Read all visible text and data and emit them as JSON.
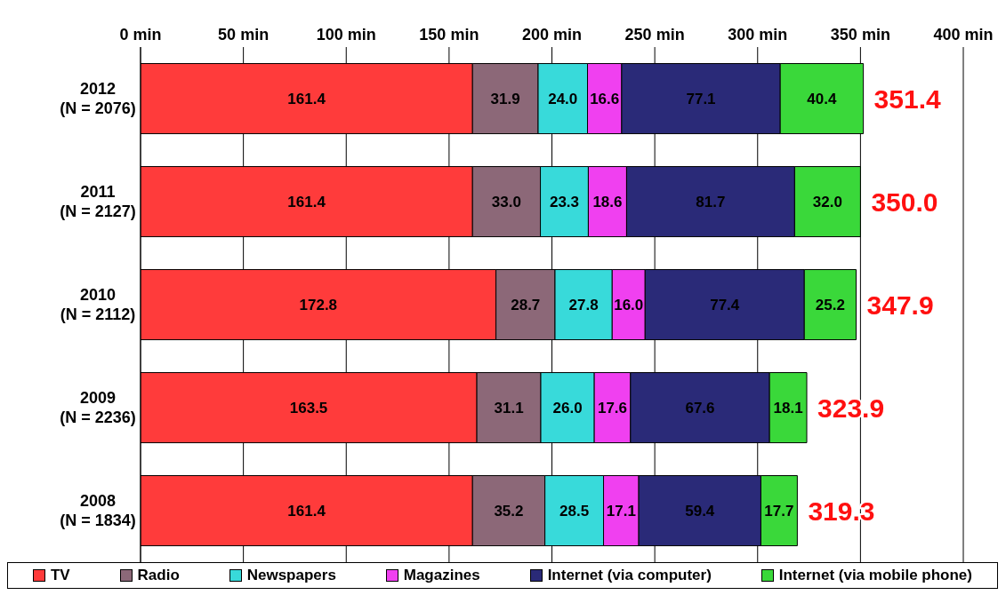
{
  "chart_data": {
    "type": "bar",
    "orientation": "horizontal",
    "stacked": true,
    "categories": [
      "2012\n(N = 2076)",
      "2011\n(N = 2127)",
      "2010\n(N = 2112)",
      "2009\n(N = 2236)",
      "2008\n(N = 1834)"
    ],
    "series": [
      {
        "name": "TV",
        "color": "#ff3b3b",
        "values": [
          161.4,
          161.4,
          172.8,
          163.5,
          161.4
        ],
        "value_labels": [
          "161.4",
          "161.4",
          "172.8",
          "163.5",
          "161.4"
        ]
      },
      {
        "name": "Radio",
        "color": "#8c6878",
        "values": [
          31.9,
          33.0,
          28.7,
          31.1,
          35.2
        ],
        "value_labels": [
          "31.9",
          "33.0",
          "28.7",
          "31.1",
          "35.2"
        ]
      },
      {
        "name": "Newspapers",
        "color": "#38dada",
        "values": [
          24.0,
          23.3,
          27.8,
          26.0,
          28.5
        ],
        "value_labels": [
          "24.0",
          "23.3",
          "27.8",
          "26.0",
          "28.5"
        ]
      },
      {
        "name": "Magazines",
        "color": "#f040f0",
        "values": [
          16.6,
          18.6,
          16.0,
          17.6,
          17.1
        ],
        "value_labels": [
          "16.6",
          "18.6",
          "16.0",
          "17.6",
          "17.1"
        ]
      },
      {
        "name": "Internet (via computer)",
        "color": "#2a2a78",
        "values": [
          77.1,
          81.7,
          77.4,
          67.6,
          59.4
        ],
        "value_labels": [
          "77.1",
          "81.7",
          "77.4",
          "67.6",
          "59.4"
        ]
      },
      {
        "name": "Internet (via mobile phone)",
        "color": "#3ad83a",
        "values": [
          40.4,
          32.0,
          25.2,
          18.1,
          17.7
        ],
        "value_labels": [
          "40.4",
          "32.0",
          "25.2",
          "18.1",
          "17.7"
        ]
      }
    ],
    "totals": [
      "351.4",
      "350.0",
      "347.9",
      "323.9",
      "319.3"
    ],
    "xlim": [
      0,
      400
    ],
    "xticks": [
      {
        "value": 0,
        "label": "0 min"
      },
      {
        "value": 50,
        "label": "50 min"
      },
      {
        "value": 100,
        "label": "100 min"
      },
      {
        "value": 150,
        "label": "150 min"
      },
      {
        "value": 200,
        "label": "200 min"
      },
      {
        "value": 250,
        "label": "250 min"
      },
      {
        "value": 300,
        "label": "300 min"
      },
      {
        "value": 350,
        "label": "350 min"
      },
      {
        "value": 400,
        "label": "400 min"
      }
    ],
    "grid": "x",
    "legend": "bottom"
  }
}
